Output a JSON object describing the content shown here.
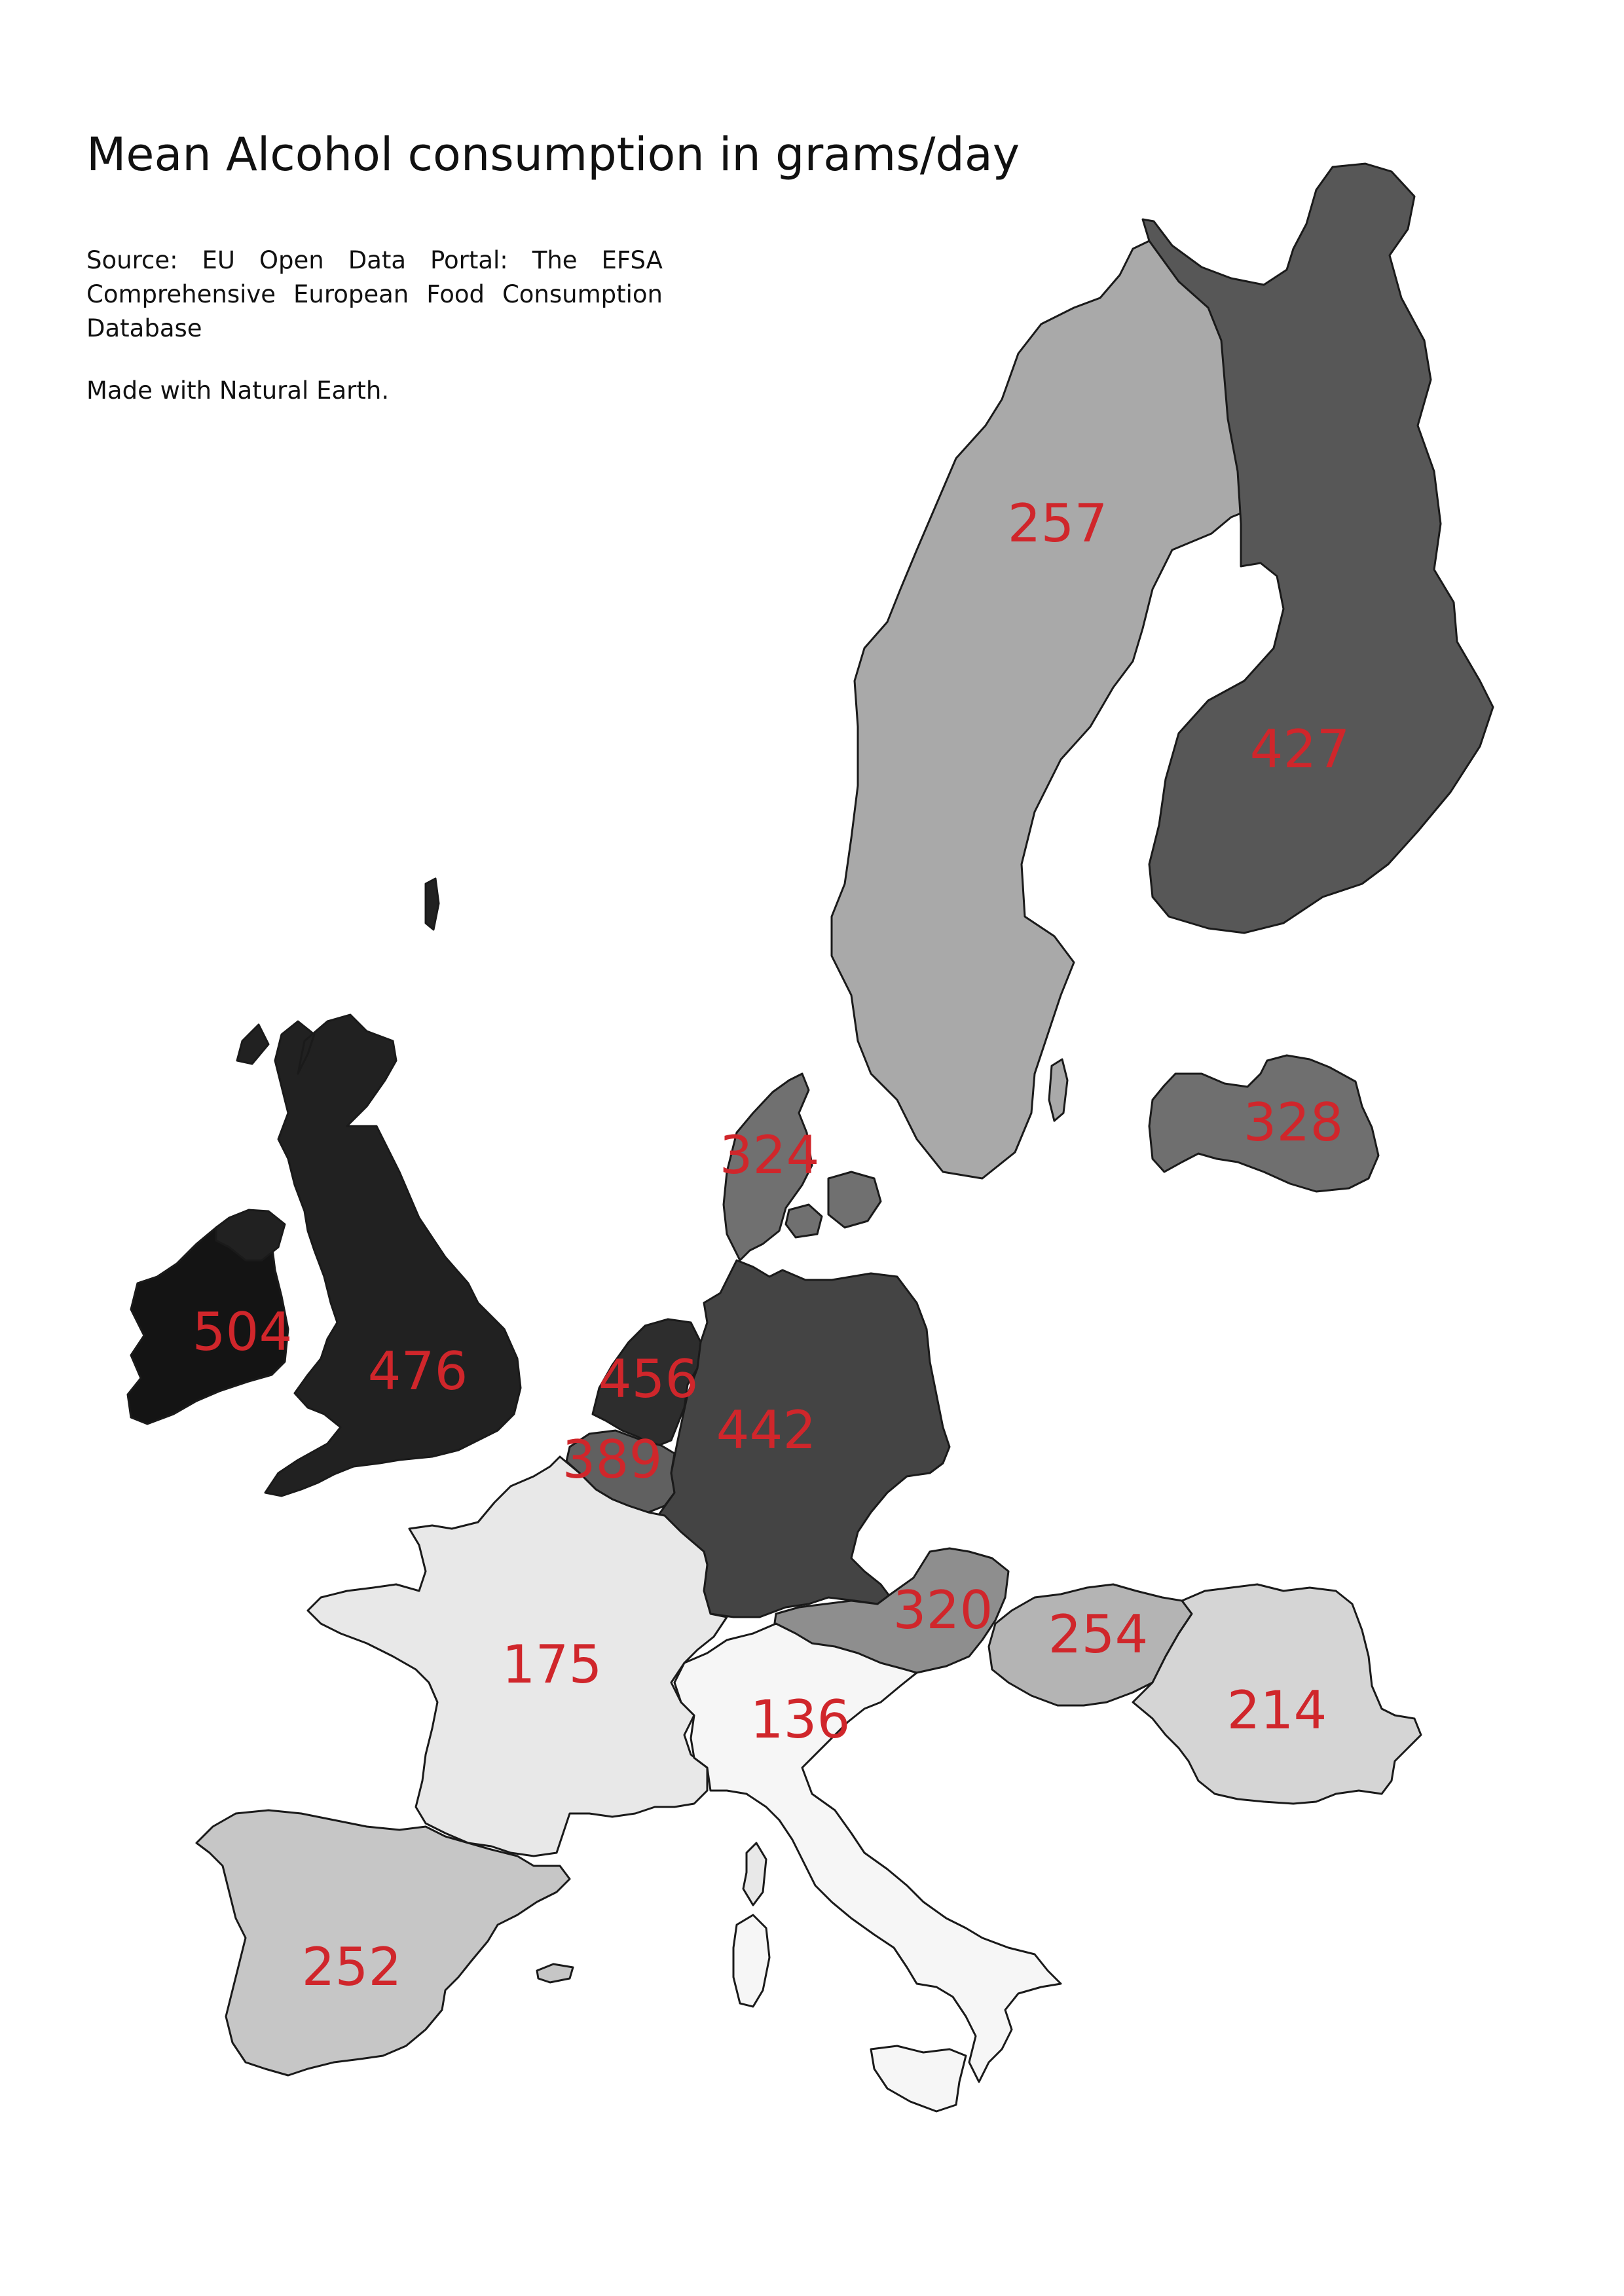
{
  "title": "Mean Alcohol consumption in grams/day",
  "source": "Source: EU Open Data Portal: The EFSA Comprehensive European Food Consumption Database",
  "credit": "Made with Natural Earth.",
  "label_color": "#d0262b",
  "countries": [
    {
      "key": "sweden",
      "value": "257",
      "fill": "#a9a9a9"
    },
    {
      "key": "finland",
      "value": "427",
      "fill": "#575757"
    },
    {
      "key": "latvia",
      "value": "328",
      "fill": "#6f6f6f"
    },
    {
      "key": "denmark",
      "value": "324",
      "fill": "#707070"
    },
    {
      "key": "ireland",
      "value": "504",
      "fill": "#141414"
    },
    {
      "key": "united-kingdom",
      "value": "476",
      "fill": "#212121"
    },
    {
      "key": "netherlands",
      "value": "456",
      "fill": "#2d2d2d"
    },
    {
      "key": "germany",
      "value": "442",
      "fill": "#444444"
    },
    {
      "key": "belgium",
      "value": "389",
      "fill": "#606060"
    },
    {
      "key": "austria",
      "value": "320",
      "fill": "#8e8e8e"
    },
    {
      "key": "hungary",
      "value": "254",
      "fill": "#b4b4b4"
    },
    {
      "key": "romania",
      "value": "214",
      "fill": "#d5d5d5"
    },
    {
      "key": "france",
      "value": "175",
      "fill": "#e8e8e8"
    },
    {
      "key": "italy",
      "value": "136",
      "fill": "#f6f6f6"
    },
    {
      "key": "spain",
      "value": "252",
      "fill": "#c6c6c6"
    }
  ]
}
